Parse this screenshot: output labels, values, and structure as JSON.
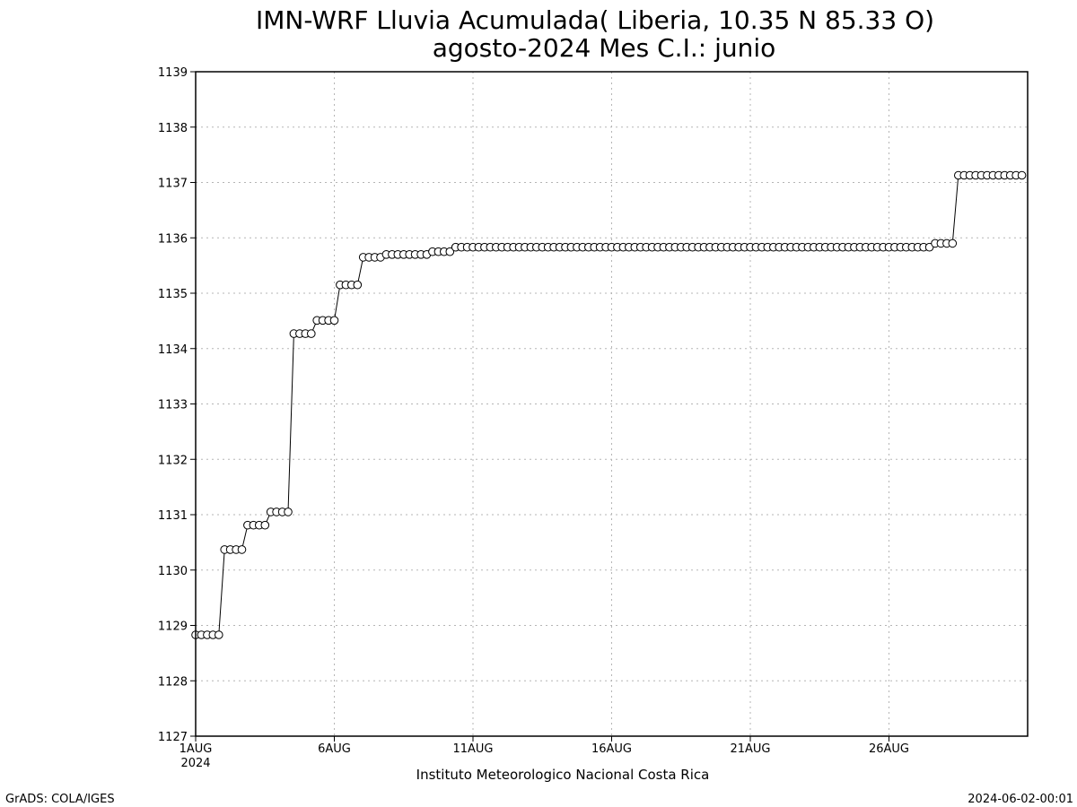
{
  "chart_data": {
    "type": "line",
    "title": "IMN-WRF  Lluvia Acumulada( Liberia, 10.35  N 85.33  O)",
    "subtitle": "agosto-2024 Mes C.I.: junio",
    "xlabel": "Instituto Meteorologico Nacional Costa Rica",
    "ylabel": "",
    "ylim": [
      1127,
      1139
    ],
    "yticks": [
      1127,
      1128,
      1129,
      1130,
      1131,
      1132,
      1133,
      1134,
      1135,
      1136,
      1137,
      1138,
      1139
    ],
    "xlim": [
      0,
      30
    ],
    "xticks": [
      {
        "x": 0,
        "label": "1AUG",
        "sublabel": "2024"
      },
      {
        "x": 5,
        "label": "6AUG",
        "sublabel": ""
      },
      {
        "x": 10,
        "label": "11AUG",
        "sublabel": ""
      },
      {
        "x": 15,
        "label": "16AUG",
        "sublabel": ""
      },
      {
        "x": 20,
        "label": "21AUG",
        "sublabel": ""
      },
      {
        "x": 25,
        "label": "26AUG",
        "sublabel": ""
      }
    ],
    "grid": true,
    "marker": "open-circle",
    "series_color": "#000000",
    "steps": [
      {
        "from": 0,
        "to": 4,
        "value": 1128.83
      },
      {
        "from": 5,
        "to": 8,
        "value": 1130.37
      },
      {
        "from": 9,
        "to": 12,
        "value": 1130.81
      },
      {
        "from": 13,
        "to": 16,
        "value": 1131.05
      },
      {
        "from": 17,
        "to": 20,
        "value": 1134.27
      },
      {
        "from": 21,
        "to": 24,
        "value": 1134.51
      },
      {
        "from": 25,
        "to": 28,
        "value": 1135.15
      },
      {
        "from": 29,
        "to": 32,
        "value": 1135.65
      },
      {
        "from": 33,
        "to": 40,
        "value": 1135.7
      },
      {
        "from": 41,
        "to": 44,
        "value": 1135.75
      },
      {
        "from": 45,
        "to": 127,
        "value": 1135.83
      },
      {
        "from": 128,
        "to": 131,
        "value": 1135.9
      },
      {
        "from": 132,
        "to": 143,
        "value": 1137.13
      }
    ],
    "step_hours": 5
  },
  "footer": {
    "left": "GrADS: COLA/IGES",
    "right": "2024-06-02-00:01"
  }
}
